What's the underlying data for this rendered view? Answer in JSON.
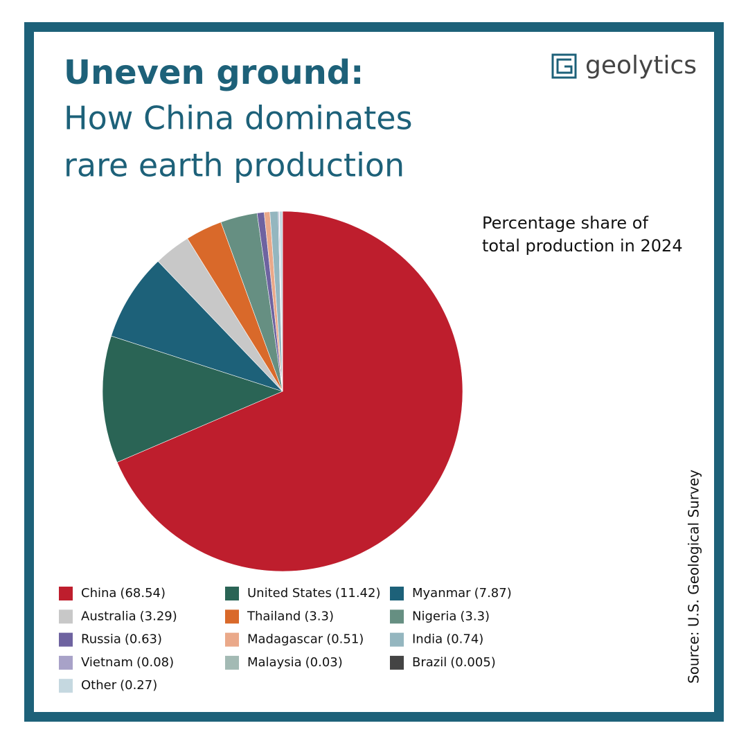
{
  "chart_data": {
    "type": "pie",
    "title": "Uneven ground:",
    "subtitle": [
      "How China dominates",
      "rare earth production"
    ],
    "annotation": [
      "Percentage share of",
      "total production in 2024"
    ],
    "logo": "geolytics",
    "source": "Source: U.S. Geological Survey",
    "categories": [
      "China",
      "United States",
      "Myanmar",
      "Australia",
      "Thailand",
      "Nigeria",
      "Russia",
      "Madagascar",
      "India",
      "Vietnam",
      "Malaysia",
      "Brazil",
      "Other"
    ],
    "values": [
      68.54,
      11.42,
      7.87,
      3.29,
      3.3,
      3.3,
      0.63,
      0.51,
      0.74,
      0.08,
      0.03,
      0.005,
      0.27
    ],
    "value_labels": [
      "(68.54)",
      "(11.42)",
      "(7.87)",
      "(3.29)",
      "(3.3)",
      "(3.3)",
      "(0.63)",
      "(0.51)",
      "(0.74)",
      "(0.08)",
      "(0.03)",
      "(0.005)",
      "(0.27)"
    ],
    "colors": [
      "#be1e2d",
      "#2a6455",
      "#1d6179",
      "#c8c8c8",
      "#d9692a",
      "#668f82",
      "#6e63a0",
      "#eaa98a",
      "#94b6bf",
      "#a8a2c8",
      "#a3bab4",
      "#444444",
      "#c5d8e0"
    ]
  }
}
